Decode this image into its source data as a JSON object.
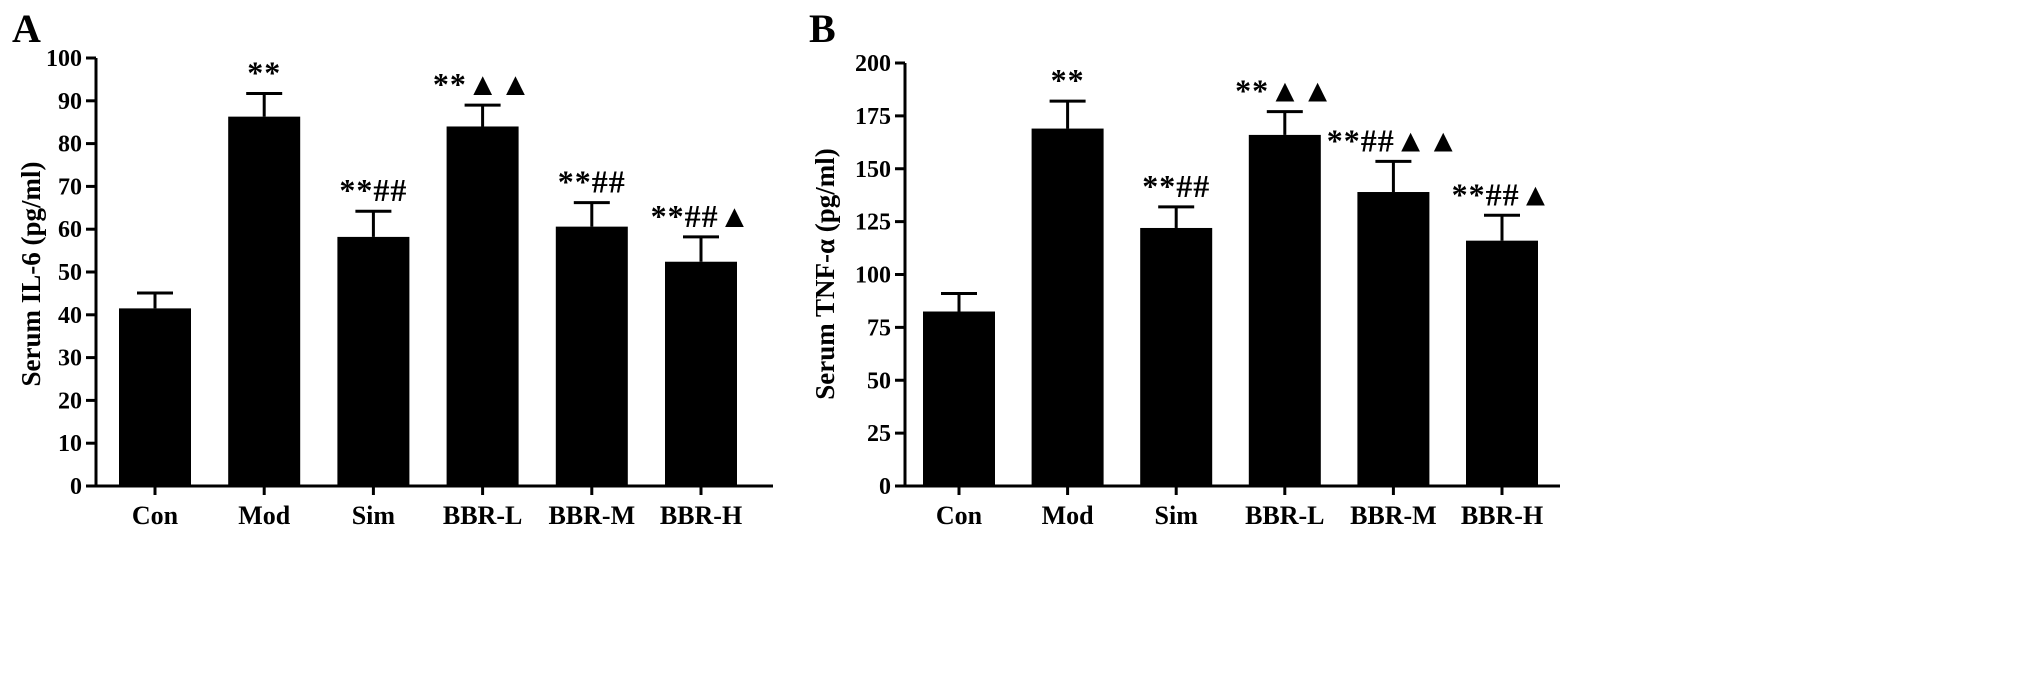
{
  "chart_data": [
    {
      "panel": "A",
      "type": "bar",
      "ylabel": "Serum IL-6 (pg/ml)",
      "ylim": [
        0,
        100
      ],
      "yticks": [
        0,
        10,
        20,
        30,
        40,
        50,
        60,
        70,
        80,
        90,
        100
      ],
      "categories": [
        "Con",
        "Mod",
        "Sim",
        "BBR-L",
        "BBR-M",
        "BBR-H"
      ],
      "values": [
        41.5,
        86.3,
        58.2,
        84.0,
        60.6,
        52.4
      ],
      "errors": [
        3.6,
        5.4,
        6.0,
        5.0,
        5.6,
        5.8
      ],
      "significance": [
        "",
        "**",
        "**##",
        "**▲▲",
        "**##",
        "**##▲"
      ],
      "bar_color": "#000000",
      "grid": false
    },
    {
      "panel": "B",
      "type": "bar",
      "ylabel": "Serum TNF-α (pg/ml)",
      "ylim": [
        0,
        200
      ],
      "yticks": [
        0,
        25,
        50,
        75,
        100,
        125,
        150,
        175,
        200
      ],
      "categories": [
        "Con",
        "Mod",
        "Sim",
        "BBR-L",
        "BBR-M",
        "BBR-H"
      ],
      "values": [
        82.5,
        169.0,
        122.0,
        166.0,
        139.0,
        116.0
      ],
      "errors": [
        8.5,
        13.0,
        10.0,
        11.0,
        14.5,
        12.0
      ],
      "significance": [
        "",
        "**",
        "**##",
        "**▲▲",
        "**##▲▲",
        "**##▲"
      ],
      "bar_color": "#000000",
      "grid": false
    }
  ]
}
